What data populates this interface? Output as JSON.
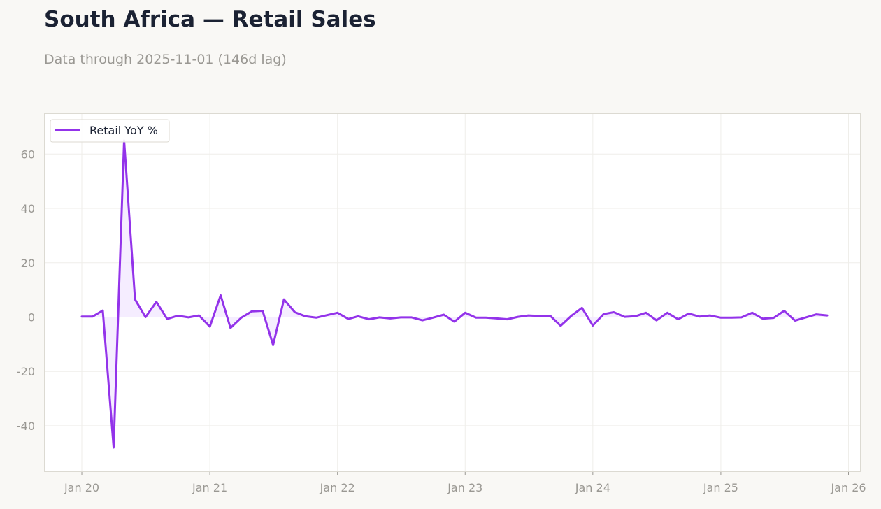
{
  "title": "South Africa — Retail Sales",
  "subtitle": "Data through 2025-11-01 (146d lag)",
  "colors": {
    "line": "#9333ea",
    "fill": "#f3e8ff",
    "frame": "#dcdad2",
    "grid": "#efeeea",
    "background": "#ffffff"
  },
  "chart_data": {
    "type": "area",
    "title": "",
    "xlabel": "",
    "ylabel": "",
    "legend_placement": "top-left",
    "grid": true,
    "ylim": [
      -57,
      75
    ],
    "xlim": [
      "2019-09-15",
      "2026-02-05"
    ],
    "x_ticks": [
      {
        "date": "2020-01-01",
        "label": "Jan 20"
      },
      {
        "date": "2021-01-01",
        "label": "Jan 21"
      },
      {
        "date": "2022-01-01",
        "label": "Jan 22"
      },
      {
        "date": "2023-01-01",
        "label": "Jan 23"
      },
      {
        "date": "2024-01-01",
        "label": "Jan 24"
      },
      {
        "date": "2025-01-01",
        "label": "Jan 25"
      },
      {
        "date": "2026-01-01",
        "label": "Jan 26"
      }
    ],
    "y_ticks": [
      {
        "value": 60,
        "label": "60"
      },
      {
        "value": 40,
        "label": "40"
      },
      {
        "value": 20,
        "label": "20"
      },
      {
        "value": 0,
        "label": "0"
      },
      {
        "value": -20,
        "label": "-20"
      },
      {
        "value": -40,
        "label": "-40"
      }
    ],
    "series": [
      {
        "name": "Retail YoY %",
        "x": [
          "2020-01-01",
          "2020-02-01",
          "2020-03-01",
          "2020-04-01",
          "2020-05-01",
          "2020-06-01",
          "2020-07-01",
          "2020-08-01",
          "2020-09-01",
          "2020-10-01",
          "2020-11-01",
          "2020-12-01",
          "2021-01-01",
          "2021-02-01",
          "2021-03-01",
          "2021-04-01",
          "2021-05-01",
          "2021-06-01",
          "2021-07-01",
          "2021-08-01",
          "2021-09-01",
          "2021-10-01",
          "2021-11-01",
          "2021-12-01",
          "2022-01-01",
          "2022-02-01",
          "2022-03-01",
          "2022-04-01",
          "2022-05-01",
          "2022-06-01",
          "2022-07-01",
          "2022-08-01",
          "2022-09-01",
          "2022-10-01",
          "2022-11-01",
          "2022-12-01",
          "2023-01-01",
          "2023-02-01",
          "2023-03-01",
          "2023-04-01",
          "2023-05-01",
          "2023-06-01",
          "2023-07-01",
          "2023-08-01",
          "2023-09-01",
          "2023-10-01",
          "2023-11-01",
          "2023-12-01",
          "2024-01-01",
          "2024-02-01",
          "2024-03-01",
          "2024-04-01",
          "2024-05-01",
          "2024-06-01",
          "2024-07-01",
          "2024-08-01",
          "2024-09-01",
          "2024-10-01",
          "2024-11-01",
          "2024-12-01",
          "2025-01-01",
          "2025-02-01",
          "2025-03-01",
          "2025-04-01",
          "2025-05-01",
          "2025-06-01",
          "2025-07-01",
          "2025-08-01",
          "2025-09-01",
          "2025-10-01",
          "2025-11-01"
        ],
        "values": [
          0.2,
          0.2,
          2.4,
          -48.0,
          65.0,
          6.5,
          0.0,
          5.6,
          -0.7,
          0.5,
          -0.1,
          0.6,
          -3.5,
          8.0,
          -4.0,
          -0.2,
          2.1,
          2.3,
          -10.3,
          6.5,
          1.8,
          0.3,
          -0.2,
          0.7,
          1.6,
          -0.7,
          0.3,
          -0.8,
          -0.1,
          -0.5,
          -0.1,
          -0.1,
          -1.2,
          -0.2,
          0.9,
          -1.7,
          1.6,
          -0.2,
          -0.2,
          -0.5,
          -0.8,
          0.1,
          0.6,
          0.4,
          0.5,
          -3.2,
          0.5,
          3.4,
          -3.1,
          1.1,
          1.8,
          0.1,
          0.3,
          1.6,
          -1.2,
          1.6,
          -0.8,
          1.3,
          0.2,
          0.6,
          -0.2,
          -0.2,
          -0.1,
          1.6,
          -0.6,
          -0.3,
          2.3,
          -1.3,
          -0.1,
          1.0,
          0.6
        ]
      }
    ]
  }
}
